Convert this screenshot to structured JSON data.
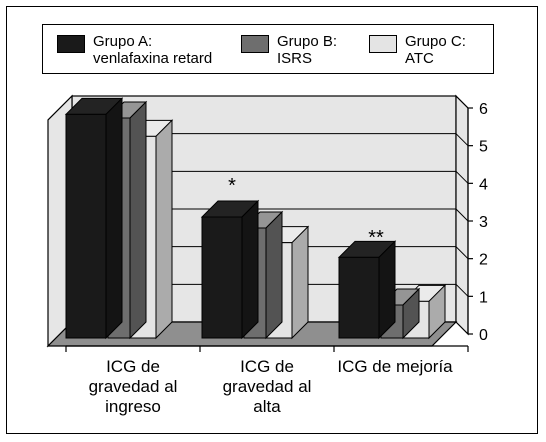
{
  "chart_data": {
    "type": "bar",
    "style": "3d-clustered",
    "categories": [
      [
        "ICG de",
        "gravedad al",
        "ingreso"
      ],
      [
        "ICG de",
        "gravedad al",
        "alta"
      ],
      [
        "ICG de mejoría"
      ]
    ],
    "series": [
      {
        "name": [
          "Grupo A:",
          "venlafaxina retard"
        ],
        "values": [
          6.1,
          3.3,
          2.2
        ],
        "color": "#1a1a1a"
      },
      {
        "name": [
          "Grupo B:",
          "ISRS"
        ],
        "values": [
          6.0,
          3.0,
          0.9
        ],
        "color": "#6e6e6e"
      },
      {
        "name": [
          "Grupo C:",
          "ATC"
        ],
        "values": [
          5.5,
          2.6,
          1.0
        ],
        "color": "#e4e4e4"
      }
    ],
    "annotations": [
      {
        "category": 1,
        "text": "*"
      },
      {
        "category": 2,
        "text": "**"
      }
    ],
    "ylim": [
      0,
      6
    ],
    "yticks": [
      0,
      1,
      2,
      3,
      4,
      5,
      6
    ],
    "grid": true,
    "legend_position": "top",
    "wall_color": "#e6e6e6",
    "floor_color": "#8f8f8f"
  }
}
